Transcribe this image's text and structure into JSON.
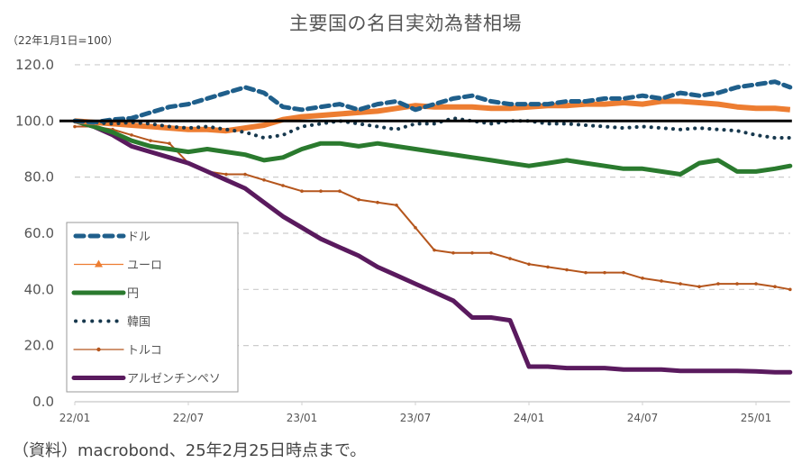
{
  "chart_data": {
    "type": "line",
    "title": "主要国の名目実効為替相場",
    "ylabel": "（22年1月1日=100）",
    "xlabel": "",
    "ylim": [
      0,
      120
    ],
    "yticks": [
      "0.0",
      "20.0",
      "40.0",
      "60.0",
      "80.0",
      "100.0",
      "120.0"
    ],
    "ytick_values": [
      0,
      20,
      40,
      60,
      80,
      100,
      120
    ],
    "xticks": [
      "22/01",
      "22/07",
      "23/01",
      "23/07",
      "24/01",
      "24/07",
      "25/01"
    ],
    "xtick_months": [
      0,
      6,
      12,
      18,
      24,
      30,
      36
    ],
    "x_range_months": [
      0,
      37.8
    ],
    "reference_line": 100,
    "grid": true,
    "legend_position": "left",
    "x": [
      0,
      1,
      2,
      3,
      4,
      5,
      6,
      7,
      8,
      9,
      10,
      11,
      12,
      13,
      14,
      15,
      16,
      17,
      18,
      19,
      20,
      21,
      22,
      23,
      24,
      25,
      26,
      27,
      28,
      29,
      30,
      31,
      32,
      33,
      34,
      35,
      36,
      37,
      37.8
    ],
    "series": [
      {
        "name": "ドル",
        "color": "#1f5f8b",
        "style": "dashed",
        "values": [
          100,
          99.5,
          100.5,
          101,
          103,
          105,
          106,
          108,
          110,
          112,
          110,
          105,
          104,
          105,
          106,
          104,
          106,
          107,
          104,
          106,
          108,
          109,
          107,
          106,
          106,
          106,
          107,
          107,
          108,
          108,
          109,
          108,
          110,
          109,
          110,
          112,
          113,
          114,
          112
        ]
      },
      {
        "name": "ユーロ",
        "color": "#ed7d31",
        "style": "marker-triangle",
        "values": [
          100,
          99.5,
          99,
          98.5,
          98,
          97.5,
          97,
          97,
          96.5,
          97.5,
          98.5,
          100.5,
          101.5,
          102,
          102.5,
          103,
          103.5,
          104.5,
          105.5,
          105,
          105,
          105,
          104.5,
          104.5,
          105,
          105.5,
          105.5,
          106,
          106,
          106.5,
          106,
          107,
          107,
          106.5,
          106,
          105,
          104.5,
          104.5,
          104
        ]
      },
      {
        "name": "円",
        "color": "#2a7a2e",
        "style": "thick",
        "values": [
          100,
          98,
          96,
          93,
          91,
          90,
          89,
          90,
          89,
          88,
          86,
          87,
          90,
          92,
          92,
          91,
          92,
          91,
          90,
          89,
          88,
          87,
          86,
          85,
          84,
          85,
          86,
          85,
          84,
          83,
          83,
          82,
          81,
          85,
          86,
          82,
          82,
          83,
          84
        ]
      },
      {
        "name": "韓国",
        "color": "#17384d",
        "style": "dotted",
        "values": [
          100,
          99.5,
          99,
          99.5,
          99,
          98,
          97.5,
          98,
          97,
          96,
          94,
          95,
          98,
          99,
          100,
          99,
          98,
          97,
          99,
          99,
          101,
          100,
          99,
          100,
          100,
          99,
          99,
          98.5,
          98,
          97.5,
          98,
          97.5,
          97,
          97.5,
          97,
          96.5,
          95,
          94,
          94
        ]
      },
      {
        "name": "トルコ",
        "color": "#b5561d",
        "style": "marker-dot",
        "values": [
          98,
          98,
          97,
          95,
          93,
          92,
          85,
          82,
          81,
          81,
          79,
          77,
          75,
          75,
          75,
          72,
          71,
          70,
          62,
          54,
          53,
          53,
          53,
          51,
          49,
          48,
          47,
          46,
          46,
          46,
          44,
          43,
          42,
          41,
          42,
          42,
          42,
          41,
          40
        ]
      },
      {
        "name": "アルゼンチンペソ",
        "color": "#5a1a5e",
        "style": "thick",
        "values": [
          100,
          98,
          95,
          91,
          89,
          87,
          85,
          82,
          79,
          76,
          71,
          66,
          62,
          58,
          55,
          52,
          48,
          45,
          42,
          39,
          36,
          30,
          30,
          29,
          12.5,
          12.5,
          12,
          12,
          12,
          11.5,
          11.5,
          11.5,
          11,
          11,
          11,
          11,
          10.8,
          10.5,
          10.5
        ]
      }
    ],
    "source": "（資料）macrobond、25年2月25日時点まで。"
  }
}
